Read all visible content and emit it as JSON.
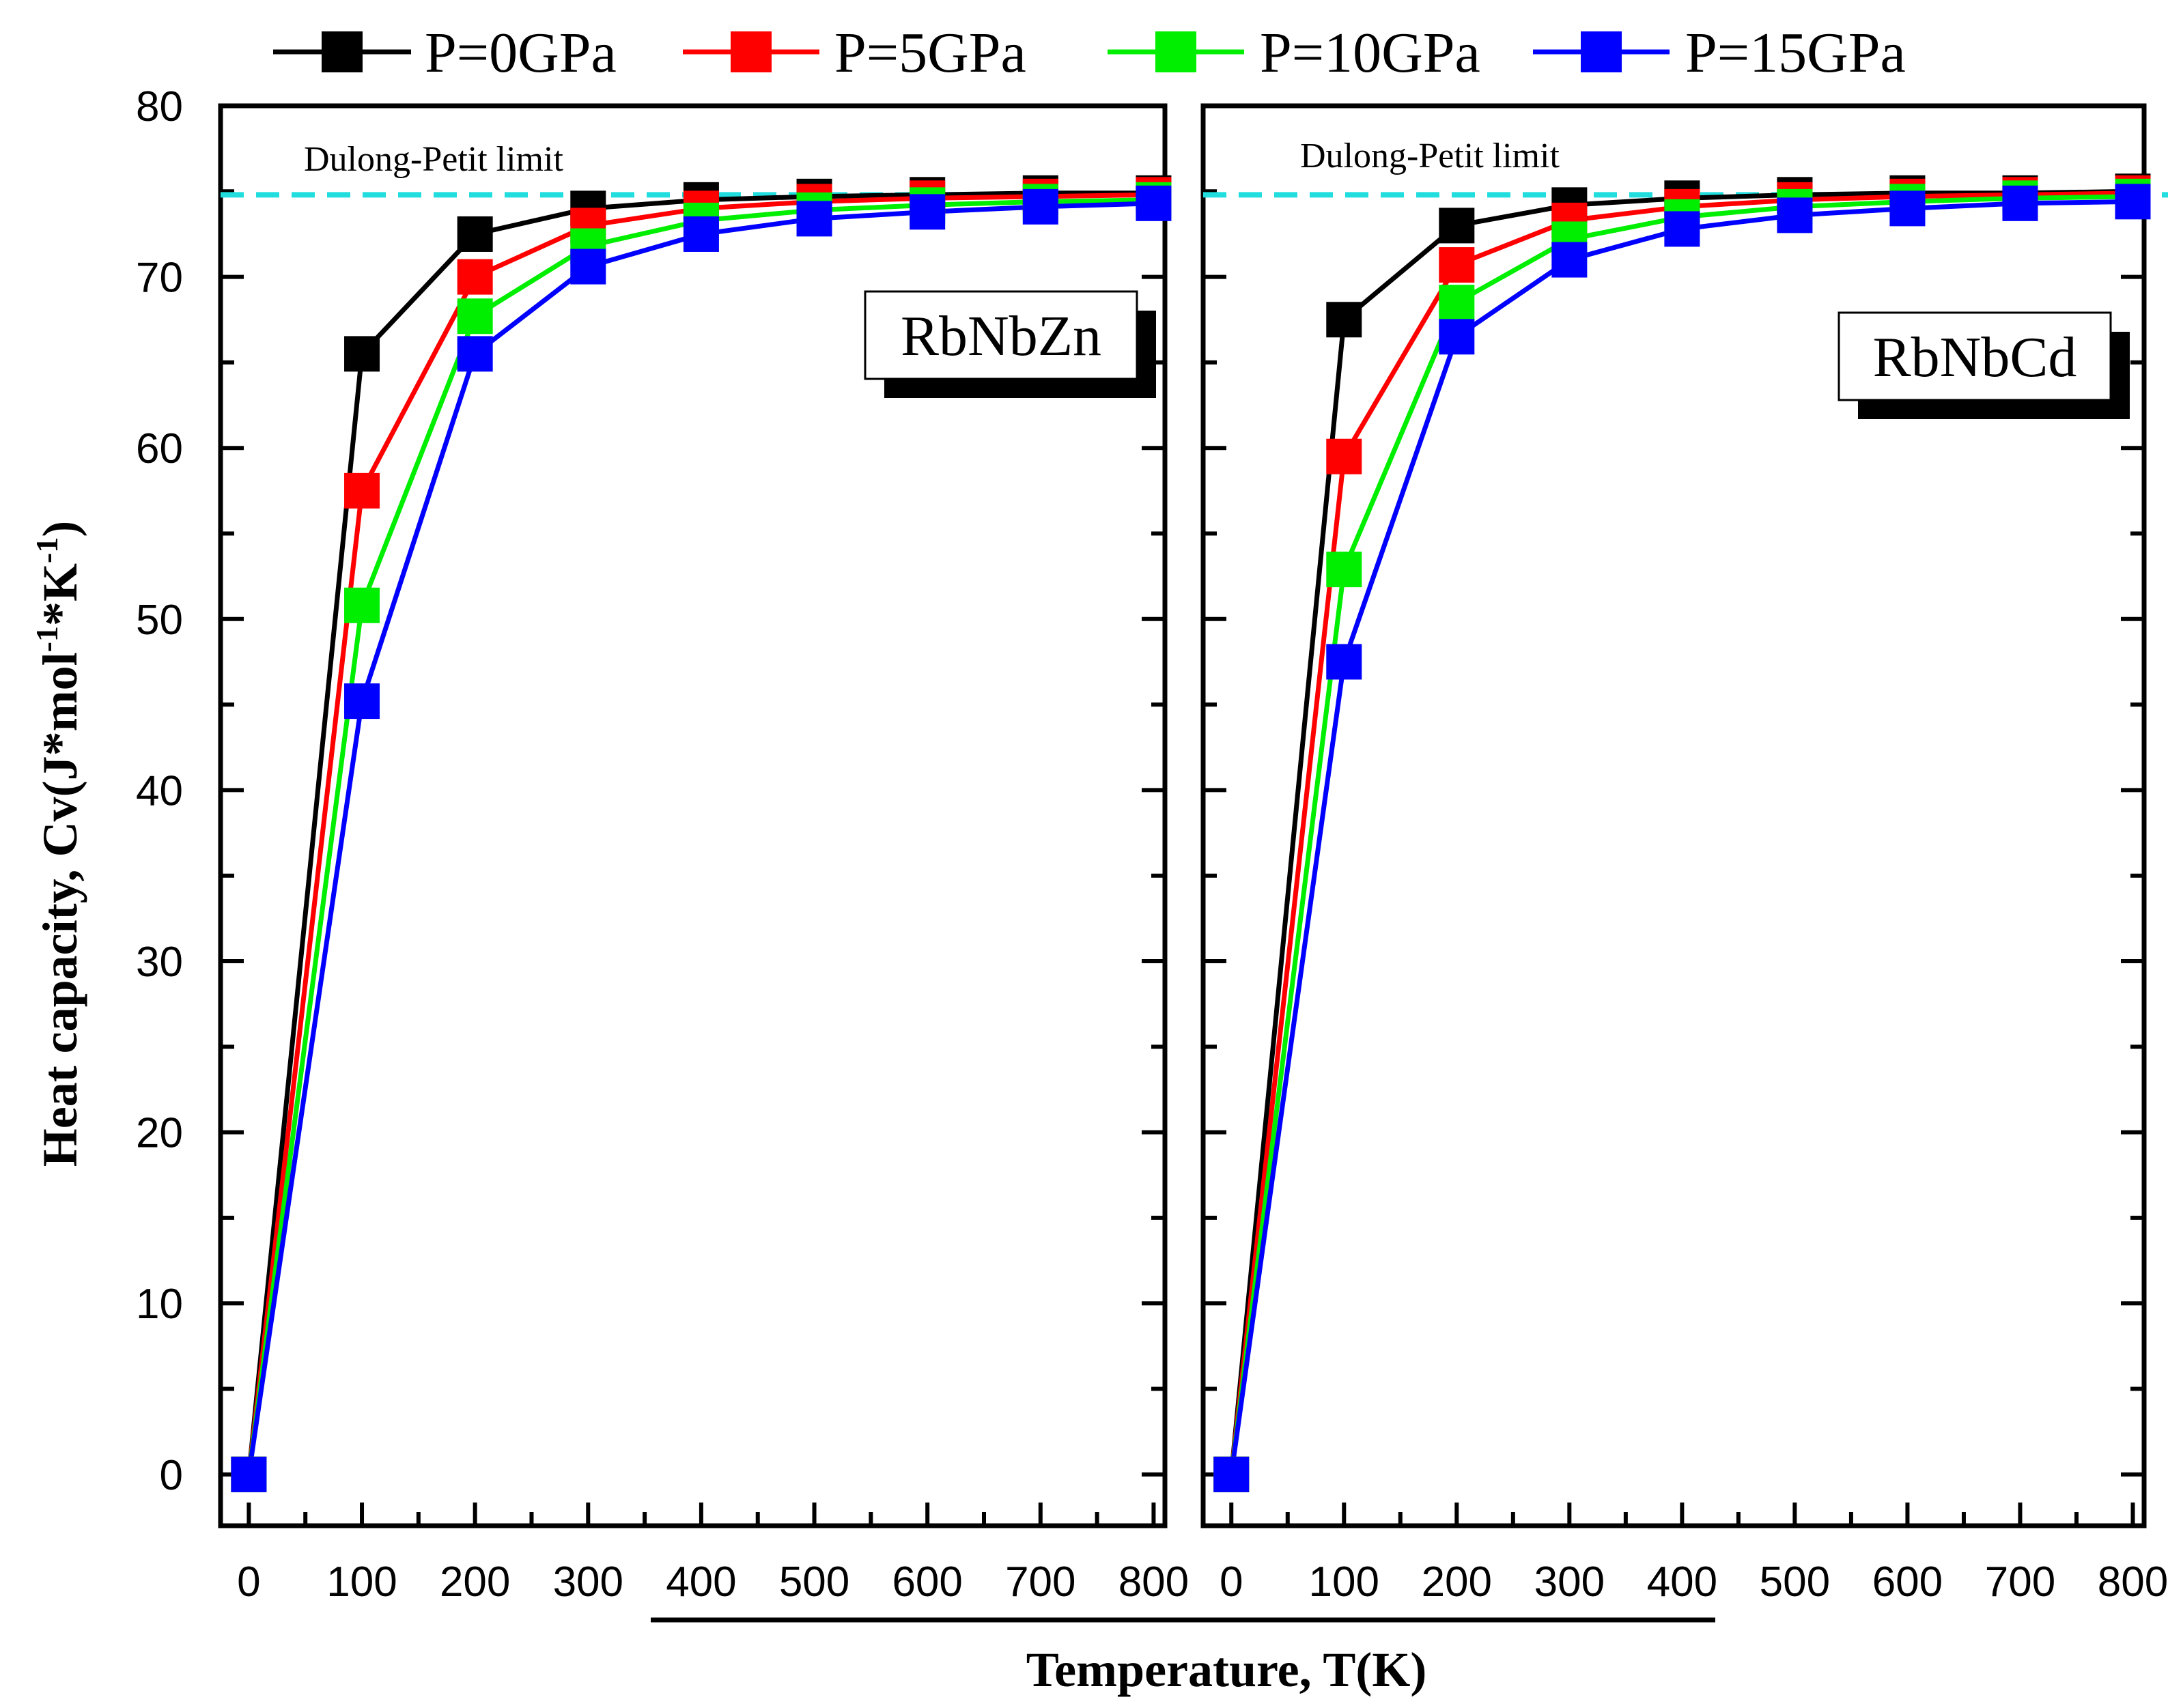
{
  "chart_data": {
    "type": "line",
    "xlabel": "Temperature, T(K)",
    "ylabel": "Heat capacity, Cv(J*mol⁻¹*K⁻¹)",
    "ylabel_parts": {
      "main": "Heat capacity, Cv(J*mol",
      "sup1": "-1",
      "mid": "*K",
      "sup2": "-1",
      "end": ")"
    },
    "ylim": [
      -3,
      80
    ],
    "xlim": [
      -25,
      810
    ],
    "y_ticks": [
      "0",
      "10",
      "20",
      "30",
      "40",
      "50",
      "60",
      "70",
      "80"
    ],
    "x_ticks": [
      "0",
      "100",
      "200",
      "300",
      "400",
      "500",
      "600",
      "700",
      "800"
    ],
    "reference_line": {
      "label": "Dulong-Petit limit",
      "value": 74.8,
      "color": "#22dddd"
    },
    "legend": [
      {
        "label": "P=0GPa",
        "color": "#000000"
      },
      {
        "label": "P=5GPa",
        "color": "#ff0000"
      },
      {
        "label": "P=10GPa",
        "color": "#00ee00"
      },
      {
        "label": "P=15GPa",
        "color": "#0000ff"
      }
    ],
    "x": [
      0,
      100,
      200,
      300,
      400,
      500,
      600,
      700,
      800
    ],
    "panels": [
      {
        "label": "RbNbZn",
        "series": [
          {
            "name": "P=0GPa",
            "values": [
              0,
              65.5,
              72.5,
              74.0,
              74.5,
              74.7,
              74.8,
              74.9,
              74.9
            ]
          },
          {
            "name": "P=5GPa",
            "values": [
              0,
              57.5,
              70.0,
              73.0,
              74.0,
              74.4,
              74.6,
              74.7,
              74.8
            ]
          },
          {
            "name": "P=10GPa",
            "values": [
              0,
              50.8,
              67.7,
              71.8,
              73.3,
              73.9,
              74.2,
              74.4,
              74.5
            ]
          },
          {
            "name": "P=15GPa",
            "values": [
              0,
              45.2,
              65.5,
              70.6,
              72.5,
              73.4,
              73.8,
              74.1,
              74.3
            ]
          }
        ]
      },
      {
        "label": "RbNbCd",
        "series": [
          {
            "name": "P=0GPa",
            "values": [
              0,
              67.5,
              73.0,
              74.2,
              74.6,
              74.8,
              74.9,
              74.9,
              75.0
            ]
          },
          {
            "name": "P=5GPa",
            "values": [
              0,
              59.5,
              70.7,
              73.3,
              74.1,
              74.5,
              74.7,
              74.8,
              74.9
            ]
          },
          {
            "name": "P=10GPa",
            "values": [
              0,
              52.9,
              68.5,
              72.2,
              73.5,
              74.1,
              74.4,
              74.6,
              74.7
            ]
          },
          {
            "name": "P=15GPa",
            "values": [
              0,
              47.5,
              66.5,
              71.0,
              72.8,
              73.6,
              74.0,
              74.3,
              74.4
            ]
          }
        ]
      }
    ]
  }
}
